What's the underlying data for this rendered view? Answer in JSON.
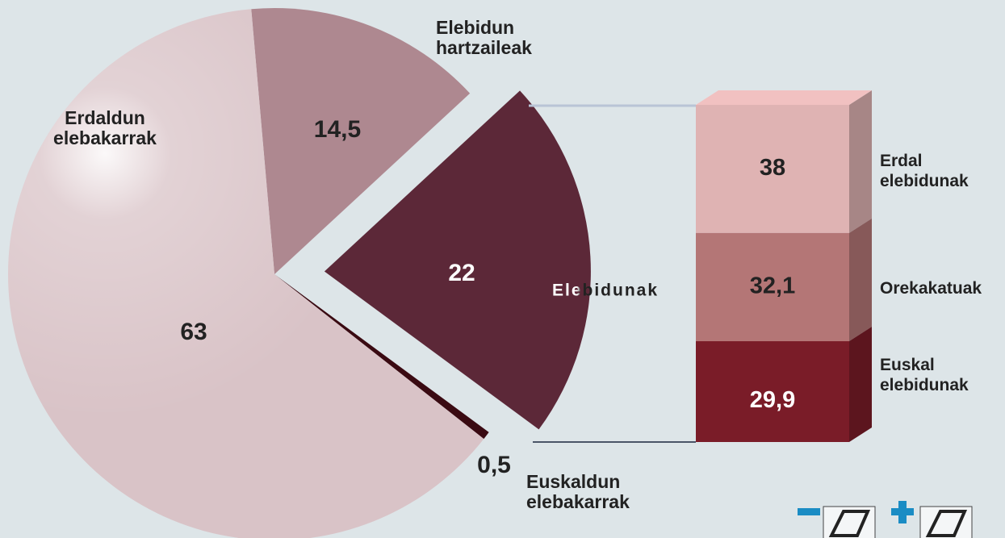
{
  "chart_data": [
    {
      "type": "pie",
      "categories": [
        "Elebidun\nhartzaileak",
        "Elebidunak",
        "Euskaldun\nelebakarrak",
        "Erdaldun\nelebakarrak"
      ],
      "values": [
        14.5,
        22,
        0.5,
        63
      ],
      "value_labels": [
        "14,5",
        "22",
        "0,5",
        "63"
      ],
      "colors": [
        "#ae8890",
        "#5c2838",
        "#3a0a12",
        "#d9c3c7"
      ],
      "explode": [
        false,
        true,
        false,
        false
      ]
    },
    {
      "type": "bar",
      "categories": [
        "Erdal\nelebidunak",
        "Orekakatuak",
        "Euskal\nelebidunak"
      ],
      "values": [
        38,
        32.1,
        29.9
      ],
      "value_labels": [
        "38",
        "32,1",
        "29,9"
      ],
      "colors": [
        "#dfb3b3",
        "#b47676",
        "#7a1c28"
      ]
    }
  ]
}
